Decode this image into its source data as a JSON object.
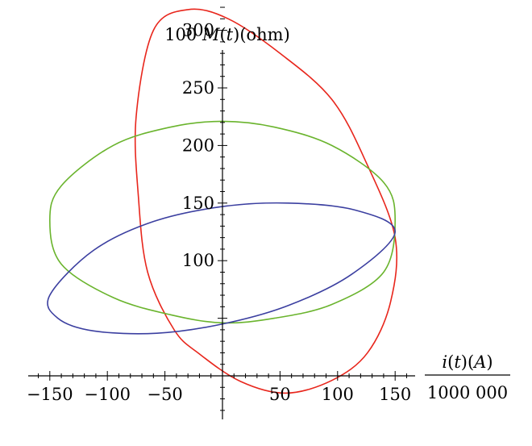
{
  "chart_data": {
    "type": "line",
    "subtype": "parametric",
    "ylabel": {
      "prefix": "100 ",
      "var": "M",
      "paren": "(",
      "t": "t",
      "unit": ")(ohm)"
    },
    "xlabel": {
      "var": "i",
      "p1": "(",
      "t": "t",
      "p2": ")(",
      "A": "A",
      "p3": ")",
      "denominator": "1000 000"
    },
    "xlim": [
      -165,
      165
    ],
    "ylim": [
      -32,
      330
    ],
    "xticks": [
      -150,
      -100,
      -50,
      50,
      100,
      150
    ],
    "xtick_labels": [
      "−150",
      "−100",
      "−50",
      "50",
      "100",
      "150"
    ],
    "yticks": [
      100,
      150,
      200,
      250,
      300
    ],
    "ytick_labels": [
      "100",
      "150",
      "200",
      "250",
      "300"
    ],
    "grid": false,
    "series": [
      {
        "color": "#e8261c",
        "x": [
          150,
          146,
          126,
          95,
          55,
          16,
          -20,
          -42,
          -65,
          -73,
          -75,
          -60,
          -30,
          5,
          50,
          95,
          125,
          150
        ],
        "y": [
          120,
          64,
          20,
          -4,
          -15,
          -5,
          19,
          40,
          90,
          155,
          225,
          300,
          318,
          310,
          280,
          240,
          185,
          120
        ]
      },
      {
        "color": "#6ab42d",
        "x": [
          150,
          140,
          95,
          45,
          0,
          -45,
          -95,
          -140,
          -150,
          -140,
          -95,
          -45,
          0,
          45,
          95,
          140,
          150
        ],
        "y": [
          135,
          168,
          200,
          216,
          221,
          216,
          200,
          165,
          135,
          97,
          68,
          53,
          46,
          50,
          62,
          90,
          135
        ]
      },
      {
        "color": "#3b3fa0",
        "x": [
          150,
          115,
          57,
          0,
          -60,
          -112,
          -150,
          -143,
          -112,
          -57,
          0,
          57,
          112,
          150
        ],
        "y": [
          125,
          144,
          150,
          147,
          134,
          109,
          70,
          50,
          39,
          37,
          45,
          61,
          88,
          125
        ]
      }
    ]
  }
}
